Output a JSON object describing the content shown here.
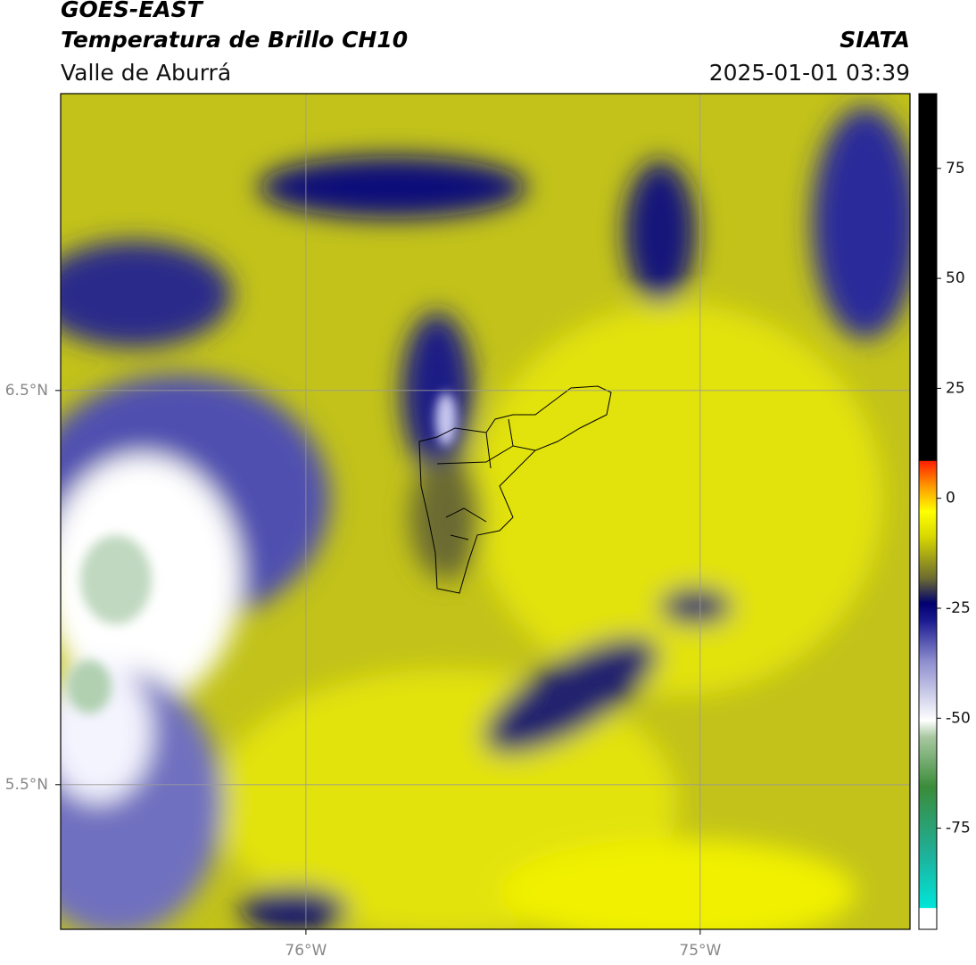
{
  "header": {
    "title": "GOES-EAST",
    "subtitle": "Temperatura de Brillo CH10",
    "region": "Valle de Aburrá",
    "source": "SIATA",
    "datetime": "2025-01-01 03:39"
  },
  "map": {
    "xlim": [
      -76.622,
      -74.468
    ],
    "ylim": [
      5.133,
      7.253
    ],
    "xticks": [
      {
        "value": -76,
        "label": "76°W"
      },
      {
        "value": -75,
        "label": "75°W"
      }
    ],
    "yticks": [
      {
        "value": 5.5,
        "label": "5.5°N"
      },
      {
        "value": 6.5,
        "label": "6.5°N"
      }
    ],
    "grid": true
  },
  "colorbar": {
    "lim": [
      -98,
      92
    ],
    "ticks": [
      -75,
      -50,
      -25,
      0,
      25,
      50,
      75
    ]
  }
}
